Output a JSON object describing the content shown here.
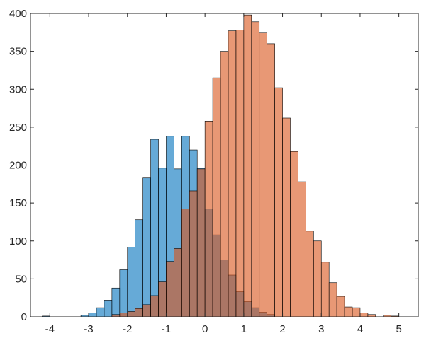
{
  "chart_data": {
    "type": "bar",
    "subtype": "overlaid-histogram",
    "title": "",
    "xlabel": "",
    "ylabel": "",
    "xlim": [
      -4.5,
      5.5
    ],
    "ylim": [
      0,
      400
    ],
    "bin_width": 0.2,
    "xticks": [
      -4,
      -3,
      -2,
      -1,
      0,
      1,
      2,
      3,
      4,
      5
    ],
    "yticks": [
      0,
      50,
      100,
      150,
      200,
      250,
      300,
      350,
      400
    ],
    "grid": false,
    "legend": "none",
    "series": [
      {
        "color": "#0072bd",
        "face_color": "#5b9fd3",
        "bins": [
          {
            "x0": -4.2,
            "count": 1
          },
          {
            "x0": -3.2,
            "count": 2
          },
          {
            "x0": -3.0,
            "count": 5
          },
          {
            "x0": -2.8,
            "count": 12
          },
          {
            "x0": -2.6,
            "count": 22
          },
          {
            "x0": -2.4,
            "count": 38
          },
          {
            "x0": -2.2,
            "count": 62
          },
          {
            "x0": -2.0,
            "count": 92
          },
          {
            "x0": -1.8,
            "count": 128
          },
          {
            "x0": -1.6,
            "count": 183
          },
          {
            "x0": -1.4,
            "count": 234
          },
          {
            "x0": -1.2,
            "count": 196
          },
          {
            "x0": -1.0,
            "count": 238
          },
          {
            "x0": -0.8,
            "count": 195
          },
          {
            "x0": -0.6,
            "count": 238
          },
          {
            "x0": -0.4,
            "count": 220
          },
          {
            "x0": -0.2,
            "count": 196
          },
          {
            "x0": 0.0,
            "count": 142
          },
          {
            "x0": 0.2,
            "count": 108
          },
          {
            "x0": 0.4,
            "count": 75
          },
          {
            "x0": 0.6,
            "count": 55
          },
          {
            "x0": 0.8,
            "count": 33
          },
          {
            "x0": 1.0,
            "count": 20
          },
          {
            "x0": 1.2,
            "count": 12
          },
          {
            "x0": 1.4,
            "count": 6
          },
          {
            "x0": 1.6,
            "count": 3
          }
        ]
      },
      {
        "color": "#d95319",
        "face_color": "#e8906a",
        "bins": [
          {
            "x0": -2.4,
            "count": 3
          },
          {
            "x0": -2.2,
            "count": 5
          },
          {
            "x0": -2.0,
            "count": 7
          },
          {
            "x0": -1.8,
            "count": 11
          },
          {
            "x0": -1.6,
            "count": 16
          },
          {
            "x0": -1.4,
            "count": 28
          },
          {
            "x0": -1.2,
            "count": 46
          },
          {
            "x0": -1.0,
            "count": 73
          },
          {
            "x0": -0.8,
            "count": 90
          },
          {
            "x0": -0.6,
            "count": 142
          },
          {
            "x0": -0.4,
            "count": 166
          },
          {
            "x0": -0.2,
            "count": 195
          },
          {
            "x0": 0.0,
            "count": 258
          },
          {
            "x0": 0.2,
            "count": 315
          },
          {
            "x0": 0.4,
            "count": 350
          },
          {
            "x0": 0.6,
            "count": 377
          },
          {
            "x0": 0.8,
            "count": 378
          },
          {
            "x0": 1.0,
            "count": 398
          },
          {
            "x0": 1.2,
            "count": 389
          },
          {
            "x0": 1.4,
            "count": 375
          },
          {
            "x0": 1.6,
            "count": 360
          },
          {
            "x0": 1.8,
            "count": 302
          },
          {
            "x0": 2.0,
            "count": 262
          },
          {
            "x0": 2.2,
            "count": 218
          },
          {
            "x0": 2.4,
            "count": 178
          },
          {
            "x0": 2.6,
            "count": 113
          },
          {
            "x0": 2.8,
            "count": 100
          },
          {
            "x0": 3.0,
            "count": 72
          },
          {
            "x0": 3.2,
            "count": 45
          },
          {
            "x0": 3.4,
            "count": 27
          },
          {
            "x0": 3.6,
            "count": 13
          },
          {
            "x0": 3.8,
            "count": 12
          },
          {
            "x0": 4.0,
            "count": 5
          },
          {
            "x0": 4.2,
            "count": 3
          },
          {
            "x0": 4.6,
            "count": 2
          },
          {
            "x0": 4.8,
            "count": 1
          }
        ]
      }
    ]
  }
}
